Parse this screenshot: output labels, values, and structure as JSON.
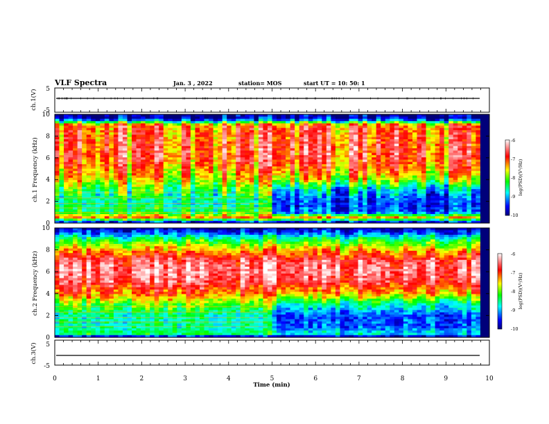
{
  "header": {
    "title": "VLF Spectra",
    "date": "Jan. 3 , 2022",
    "station": "station= MOS",
    "start_ut": "start UT =  10: 50: 1"
  },
  "colors": {
    "scale": [
      "#00007a",
      "#0000ff",
      "#00ffff",
      "#00ff00",
      "#ffff00",
      "#ff0000",
      "#ffffff"
    ]
  },
  "chart_data": [
    {
      "type": "line",
      "panel": "ch1-voltage",
      "ylabel": "ch.1(V)",
      "ylim": [
        -5,
        5
      ],
      "y_ticks": [
        "5",
        "-5"
      ],
      "series": [
        {
          "x": [
            0,
            10
          ],
          "y": [
            0,
            0
          ]
        }
      ]
    },
    {
      "type": "heatmap",
      "panel": "ch1-spectrogram",
      "ylabel": "ch.1 Frequency (kHz)",
      "xlim": [
        0,
        10
      ],
      "ylim": [
        0,
        10
      ],
      "y_ticks": [
        "0",
        "2",
        "4",
        "6",
        "8",
        "10"
      ],
      "colorbar": {
        "label": "log(PSD)(V²/Hz)",
        "range": [
          -10,
          -6
        ],
        "ticks": [
          "-6",
          "-7",
          "-8",
          "-9",
          "-10"
        ]
      },
      "description_levels": {
        "x_breaks_min": [
          0,
          5.1,
          10
        ],
        "profile_freq_khz": [
          0,
          0.5,
          1,
          2,
          3,
          4,
          5,
          6,
          7,
          8,
          9,
          9.6,
          10
        ],
        "log_psd_before_5min": [
          -10,
          -7.2,
          -8.3,
          -8.6,
          -8.2,
          -7.6,
          -7.2,
          -6.9,
          -6.9,
          -7.0,
          -7.1,
          -9.8,
          -10
        ],
        "log_psd_after_5min": [
          -10,
          -7.4,
          -9.3,
          -9.4,
          -9.0,
          -7.8,
          -7.2,
          -6.9,
          -6.9,
          -7.0,
          -7.1,
          -9.8,
          -10
        ]
      }
    },
    {
      "type": "heatmap",
      "panel": "ch2-spectrogram",
      "ylabel": "ch.2 Frequency (kHz)",
      "xlim": [
        0,
        10
      ],
      "ylim": [
        0,
        10
      ],
      "y_ticks": [
        "0",
        "2",
        "4",
        "6",
        "8",
        "10"
      ],
      "colorbar": {
        "label": "log(PSD)(V²/Hz)",
        "range": [
          -10,
          -6
        ],
        "ticks": [
          "-6",
          "-7",
          "-8",
          "-9",
          "-10"
        ]
      },
      "description_levels": {
        "profile_freq_khz": [
          0,
          0.3,
          1,
          2,
          3,
          4,
          5,
          6,
          7,
          8,
          9,
          9.6,
          10
        ],
        "log_psd_before_5min": [
          -10,
          -8.4,
          -8.6,
          -8.6,
          -8.0,
          -7.2,
          -6.6,
          -6.4,
          -6.6,
          -7.4,
          -8.4,
          -9.4,
          -9.8
        ],
        "log_psd_after_5min": [
          -10,
          -8.8,
          -9.3,
          -9.3,
          -8.6,
          -7.4,
          -6.7,
          -6.4,
          -6.6,
          -7.4,
          -8.4,
          -9.4,
          -9.8
        ]
      }
    },
    {
      "type": "line",
      "panel": "ch3-voltage",
      "ylabel": "ch.3(V)",
      "xlabel": "Time (min)",
      "ylim": [
        -5,
        5
      ],
      "y_ticks": [
        "5",
        "-5"
      ],
      "x_ticks": [
        "0",
        "1",
        "2",
        "3",
        "4",
        "5",
        "6",
        "7",
        "8",
        "9",
        "10"
      ],
      "series": [
        {
          "x": [
            0,
            10
          ],
          "y": [
            0,
            0
          ]
        }
      ]
    }
  ]
}
